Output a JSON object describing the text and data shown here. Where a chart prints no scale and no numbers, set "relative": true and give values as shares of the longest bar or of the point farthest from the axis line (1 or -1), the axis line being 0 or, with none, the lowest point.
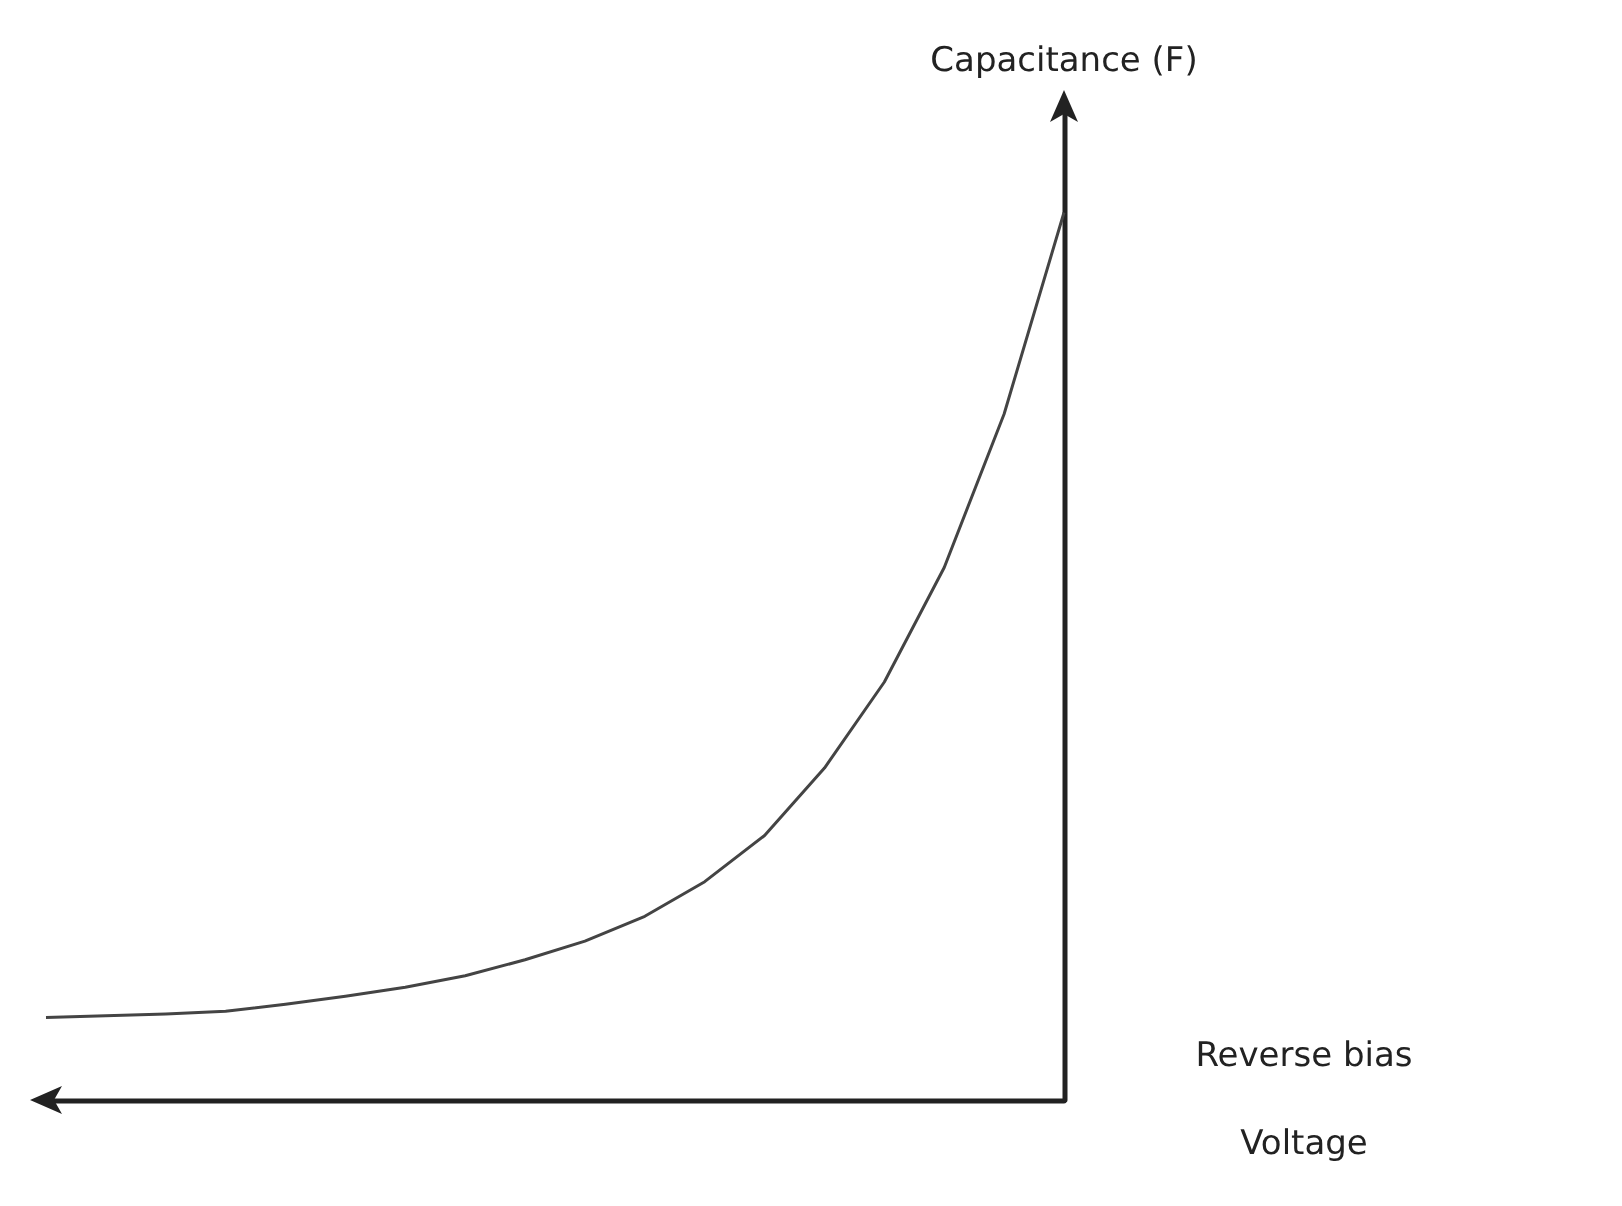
{
  "chart_data": {
    "type": "line",
    "relative": true,
    "ylabel": "Capacitance (F)",
    "xlabel": "Reverse bias\nVoltage",
    "categories": [
      null,
      null,
      null,
      null,
      null,
      null,
      null,
      null,
      null,
      null,
      null,
      null,
      null,
      null,
      null,
      null,
      null,
      null
    ],
    "series": [
      {
        "color": "#444444",
        "values": [
          0.093,
          0.095,
          0.097,
          0.1,
          0.108,
          0.117,
          0.127,
          0.14,
          0.158,
          0.179,
          0.207,
          0.246,
          0.298,
          0.374,
          0.471,
          0.6,
          0.773,
          1
        ]
      }
    ],
    "marker": "none",
    "line_style": "solid",
    "grid": false
  }
}
